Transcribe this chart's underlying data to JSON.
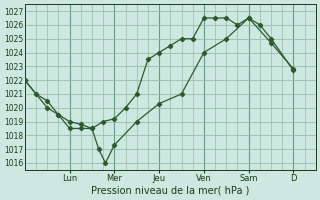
{
  "xlabel": "Pression niveau de la mer( hPa )",
  "bg_color": "#cce8e0",
  "grid_color": "#99bbaa",
  "line_color": "#2d5a2d",
  "ylim": [
    1015.5,
    1027.5
  ],
  "day_labels": [
    "Lun",
    "Mer",
    "Jeu",
    "Ven",
    "Sam",
    "D"
  ],
  "day_positions": [
    2.0,
    4.0,
    6.0,
    8.0,
    10.0,
    12.0
  ],
  "xlim": [
    0,
    13
  ],
  "series1_x": [
    0,
    0.5,
    1.0,
    1.5,
    2.0,
    2.5,
    3.0,
    3.5,
    4.0,
    4.5,
    5.0,
    5.5,
    6.0,
    6.5,
    7.0,
    7.5,
    8.0,
    8.5,
    9.0,
    9.5,
    10.0,
    10.5,
    11.0,
    12.0
  ],
  "series1_y": [
    1022,
    1021,
    1020.5,
    1019.5,
    1019,
    1018.8,
    1018.5,
    1019,
    1019.2,
    1020,
    1021,
    1023.5,
    1024.0,
    1024.5,
    1025.0,
    1025.0,
    1026.5,
    1026.5,
    1026.5,
    1026.0,
    1026.5,
    1026.0,
    1025.0,
    1022.7
  ],
  "series2_x": [
    0,
    1.0,
    1.5,
    2.0,
    2.5,
    3.0,
    3.3,
    3.6,
    4.0,
    5.0,
    6.0,
    7.0,
    8.0,
    9.0,
    10.0,
    11.0,
    12.0
  ],
  "series2_y": [
    1022,
    1020,
    1019.5,
    1018.5,
    1018.5,
    1018.5,
    1017,
    1016.0,
    1017.3,
    1019.0,
    1020.3,
    1021.0,
    1024.0,
    1025.0,
    1026.5,
    1024.7,
    1022.8
  ],
  "yticks": [
    1016,
    1017,
    1018,
    1019,
    1020,
    1021,
    1022,
    1023,
    1024,
    1025,
    1026,
    1027
  ],
  "xtick_minor_count": 4,
  "vline_positions": [
    2.0,
    4.0,
    6.0,
    8.0,
    10.0,
    12.0
  ]
}
